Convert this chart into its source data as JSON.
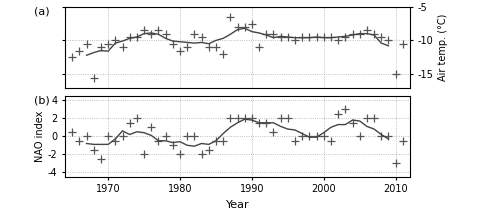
{
  "title_a": "(a)",
  "title_b": "(b)",
  "xlabel": "Year",
  "ylabel_a": "Air temp. (°C)",
  "ylabel_b": "NAO index",
  "years": [
    1965,
    1966,
    1967,
    1968,
    1969,
    1970,
    1971,
    1972,
    1973,
    1974,
    1975,
    1976,
    1977,
    1978,
    1979,
    1980,
    1981,
    1982,
    1983,
    1984,
    1985,
    1986,
    1987,
    1988,
    1989,
    1990,
    1991,
    1992,
    1993,
    1994,
    1995,
    1996,
    1997,
    1998,
    1999,
    2000,
    2001,
    2002,
    2003,
    2004,
    2005,
    2006,
    2007,
    2008,
    2009,
    2010,
    2011
  ],
  "temp": [
    -12.5,
    -11.5,
    -10.5,
    -15.5,
    -11.0,
    -10.5,
    -10.0,
    -11.0,
    -9.5,
    -9.5,
    -8.5,
    -9.0,
    -8.5,
    -9.0,
    -10.5,
    -11.5,
    -11.0,
    -9.0,
    -9.5,
    -11.0,
    -11.0,
    -12.0,
    -6.5,
    -8.0,
    -8.0,
    -7.5,
    -11.0,
    -9.0,
    -9.0,
    -9.5,
    -9.5,
    -10.0,
    -9.5,
    -9.5,
    -9.5,
    -9.5,
    -9.5,
    -10.0,
    -9.5,
    -9.0,
    -9.0,
    -8.5,
    -9.0,
    -9.5,
    -10.0,
    -15.0,
    -10.5
  ],
  "nao": [
    0.5,
    -0.5,
    0.0,
    -1.5,
    -2.5,
    0.0,
    -0.5,
    0.0,
    1.5,
    2.0,
    -2.0,
    1.0,
    -0.5,
    0.0,
    -1.0,
    -2.0,
    0.0,
    0.0,
    -2.0,
    -1.5,
    -0.5,
    -0.5,
    2.0,
    2.0,
    2.0,
    2.0,
    1.5,
    1.5,
    0.5,
    2.0,
    2.0,
    -0.5,
    0.0,
    0.0,
    0.0,
    0.0,
    -0.5,
    2.5,
    3.0,
    1.5,
    0.0,
    2.0,
    2.0,
    0.0,
    0.0,
    -3.0,
    -0.5
  ],
  "temp_ylim": [
    -17,
    -5
  ],
  "temp_yticks": [
    -15,
    -10,
    -5
  ],
  "nao_ylim": [
    -4.5,
    4.5
  ],
  "nao_yticks": [
    -4,
    -2,
    0,
    2,
    4
  ],
  "xlim": [
    1964,
    2012
  ],
  "xticks": [
    1970,
    1980,
    1990,
    2000,
    2010
  ],
  "line_color": "#444444",
  "marker_color": "#555555",
  "grid_color": "#aaaaaa",
  "running_mean_window": 5
}
